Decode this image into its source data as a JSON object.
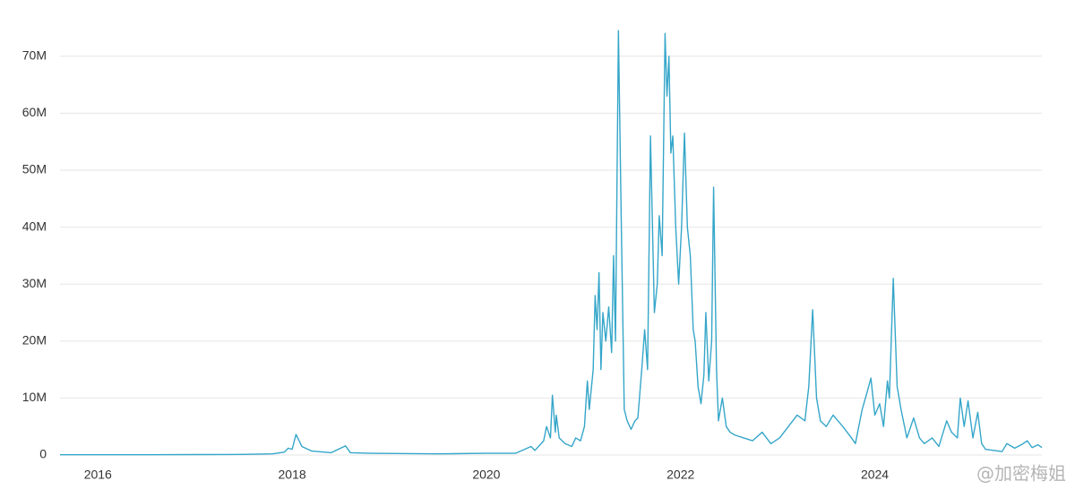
{
  "chart_data": {
    "type": "line",
    "x": [
      2015.61,
      2016.5,
      2017.0,
      2017.5,
      2017.8,
      2017.92,
      2017.96,
      2018.0,
      2018.04,
      2018.1,
      2018.2,
      2018.4,
      2018.55,
      2018.6,
      2018.8,
      2019.5,
      2020.0,
      2020.3,
      2020.46,
      2020.5,
      2020.59,
      2020.62,
      2020.66,
      2020.68,
      2020.71,
      2020.72,
      2020.75,
      2020.81,
      2020.88,
      2020.92,
      2020.97,
      2021.01,
      2021.04,
      2021.06,
      2021.1,
      2021.12,
      2021.14,
      2021.16,
      2021.18,
      2021.2,
      2021.23,
      2021.26,
      2021.29,
      2021.31,
      2021.33,
      2021.36,
      2021.39,
      2021.42,
      2021.45,
      2021.49,
      2021.53,
      2021.56,
      2021.6,
      2021.63,
      2021.66,
      2021.69,
      2021.73,
      2021.76,
      2021.78,
      2021.81,
      2021.84,
      2021.86,
      2021.88,
      2021.9,
      2021.92,
      2021.95,
      2021.98,
      2022.01,
      2022.04,
      2022.07,
      2022.1,
      2022.13,
      2022.15,
      2022.18,
      2022.21,
      2022.24,
      2022.26,
      2022.29,
      2022.32,
      2022.34,
      2022.37,
      2022.39,
      2022.43,
      2022.47,
      2022.51,
      2022.56,
      2022.65,
      2022.74,
      2022.84,
      2022.93,
      2023.02,
      2023.11,
      2023.2,
      2023.28,
      2023.32,
      2023.36,
      2023.4,
      2023.44,
      2023.5,
      2023.57,
      2023.67,
      2023.76,
      2023.8,
      2023.87,
      2023.92,
      2023.96,
      2024.0,
      2024.05,
      2024.09,
      2024.13,
      2024.15,
      2024.19,
      2024.23,
      2024.27,
      2024.33,
      2024.4,
      2024.46,
      2024.51,
      2024.59,
      2024.66,
      2024.74,
      2024.79,
      2024.85,
      2024.88,
      2024.92,
      2024.96,
      2025.01,
      2025.06,
      2025.1,
      2025.14,
      2025.23,
      2025.31,
      2025.36,
      2025.44,
      2025.51,
      2025.57,
      2025.62,
      2025.68,
      2025.72
    ],
    "values": [
      0.05,
      0.05,
      0.08,
      0.1,
      0.2,
      0.5,
      1.2,
      1,
      3.6,
      1.5,
      0.7,
      0.4,
      1.6,
      0.4,
      0.3,
      0.2,
      0.3,
      0.3,
      1.5,
      0.8,
      2.5,
      5,
      3,
      10.5,
      4,
      7,
      3,
      2,
      1.5,
      3,
      2.5,
      5,
      13,
      8,
      15,
      28,
      22,
      32,
      15,
      25,
      20,
      26,
      18,
      35,
      20,
      74.5,
      40,
      8,
      6,
      4.5,
      6,
      6.5,
      15,
      22,
      15,
      56,
      25,
      30,
      42,
      35,
      74,
      63,
      70,
      53,
      56,
      40,
      30,
      40,
      56.5,
      40,
      35,
      22,
      20,
      12,
      9,
      14,
      25,
      13,
      20,
      47,
      15,
      6,
      10,
      5,
      4,
      3.5,
      3,
      2.5,
      4,
      2,
      3,
      5,
      7,
      6,
      12,
      25.5,
      10,
      6,
      5,
      7,
      5,
      3,
      2,
      8,
      11,
      13.5,
      7,
      9,
      5,
      13,
      10,
      31,
      12,
      8,
      3,
      6.5,
      3,
      2,
      3,
      1.5,
      6,
      4,
      3,
      10,
      5,
      9.5,
      3,
      7.5,
      2,
      1,
      0.8,
      0.6,
      2,
      1.2,
      1.8,
      2.5,
      1.3,
      1.8,
      1.3
    ],
    "color": "#35a6c9",
    "xlim": [
      2015.61,
      2025.72
    ],
    "xticks": [
      2016,
      2018,
      2020,
      2022,
      2024
    ],
    "ylim": [
      0,
      75
    ],
    "yticks": [
      0,
      {
        "value": 10,
        "label": "10M"
      },
      {
        "value": 20,
        "label": "20M"
      },
      {
        "value": 30,
        "label": "30M"
      },
      {
        "value": 40,
        "label": "40M"
      },
      {
        "value": 50,
        "label": "50M"
      },
      {
        "value": 60,
        "label": "60M"
      },
      {
        "value": 70,
        "label": "70M"
      }
    ],
    "grid": true,
    "watermark": "@加密梅姐"
  }
}
